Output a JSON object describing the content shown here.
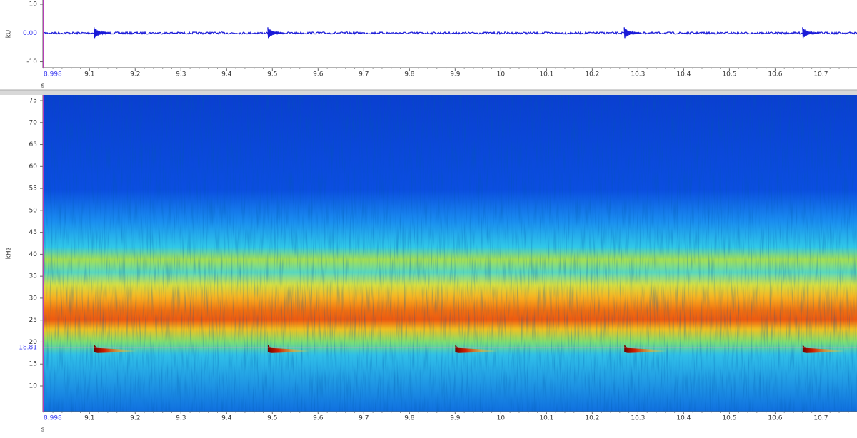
{
  "chart_data": [
    {
      "type": "line",
      "y_label": "kU",
      "x_label": "s",
      "color": "#1a1ad8",
      "cursor_color": "#3a3af0",
      "xlim": [
        8.998,
        10.779
      ],
      "ylim": [
        -12.1,
        11.5
      ],
      "yticks": [
        -10,
        10
      ],
      "cursor_y": {
        "value": 0,
        "label": "0.00"
      },
      "cursor_x": 8.998,
      "xticks": [
        9.1,
        9.2,
        9.3,
        9.4,
        9.5,
        9.6,
        9.7,
        9.8,
        9.9,
        10,
        10.1,
        10.2,
        10.3,
        10.4,
        10.5,
        10.6,
        10.7
      ],
      "pulse_x": [
        9.11,
        9.49,
        10.27,
        10.66
      ]
    },
    {
      "type": "spectrogram",
      "y_label": "kHz",
      "x_label": "s",
      "cursor_color": "#3a3af0",
      "xlim": [
        8.998,
        10.779
      ],
      "ylim": [
        4.15,
        76.3
      ],
      "yticks": [
        10,
        15,
        20,
        25,
        30,
        35,
        40,
        45,
        50,
        55,
        60,
        65,
        70,
        75
      ],
      "cursor_y": 18.81,
      "cursor_x": 8.998,
      "xticks": [
        9.1,
        9.2,
        9.3,
        9.4,
        9.5,
        9.6,
        9.7,
        9.8,
        9.9,
        10,
        10.1,
        10.2,
        10.3,
        10.4,
        10.5,
        10.6,
        10.7
      ],
      "pulse_x": [
        9.11,
        9.49,
        9.9,
        10.27,
        10.66
      ],
      "pulse_y": [
        18,
        18,
        18,
        18,
        18
      ]
    }
  ]
}
